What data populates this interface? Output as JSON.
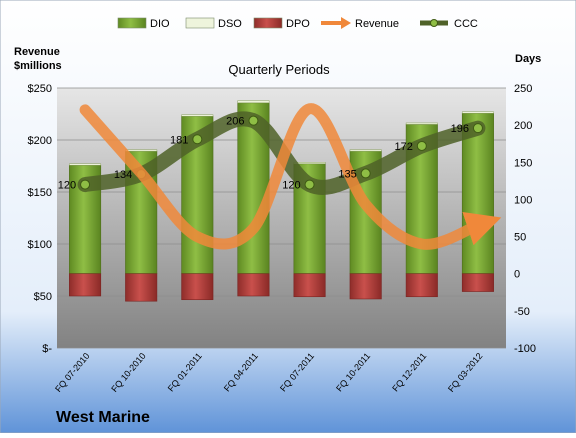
{
  "chart_data": {
    "type": "bar",
    "title": "Quarterly Periods",
    "company": "West Marine",
    "y_left_label_line1": "Revenue",
    "y_left_label_line2": "$millions",
    "y_right_label": "Days",
    "categories": [
      "FQ 07-2010",
      "FQ 10-2010",
      "FQ 01-2011",
      "FQ 04-2011",
      "FQ 07-2011",
      "FQ 10-2011",
      "FQ 12-2011",
      "FQ 03-2012"
    ],
    "legend": [
      "DIO",
      "DSO",
      "DPO",
      "Revenue",
      "CCC"
    ],
    "legend_placement": "top",
    "y_left": {
      "min": 0,
      "max": 250,
      "ticks": [
        0,
        50,
        100,
        150,
        200,
        250
      ],
      "tick_labels": [
        "$-",
        "$50",
        "$100",
        "$150",
        "$200",
        "$250"
      ]
    },
    "y_right": {
      "min": -100,
      "max": 250,
      "ticks": [
        -100,
        -50,
        0,
        50,
        100,
        150,
        200,
        250
      ],
      "tick_labels": [
        "-100",
        "-50",
        "0",
        "50",
        "100",
        "150",
        "200",
        "250"
      ]
    },
    "series": [
      {
        "name": "DIO",
        "axis": "right",
        "values": [
          146,
          165,
          212,
          230,
          148,
          165,
          201,
          216
        ],
        "color": "#77a82f"
      },
      {
        "name": "DSO",
        "axis": "right",
        "values": [
          2,
          2,
          2,
          3,
          2,
          2,
          2,
          2
        ],
        "color": "#eef4dc"
      },
      {
        "name": "DPO",
        "axis": "right",
        "values": [
          -30,
          -37,
          -35,
          -30,
          -31,
          -34,
          -31,
          -24
        ],
        "color": "#c0504d"
      },
      {
        "name": "Revenue",
        "axis": "left",
        "values": [
          229,
          168,
          107,
          115,
          230,
          138,
          100,
          118
        ],
        "color": "#f0883a"
      },
      {
        "name": "CCC",
        "axis": "right",
        "values": [
          120,
          134,
          181,
          206,
          120,
          135,
          172,
          196
        ],
        "color": "#4f6228"
      }
    ],
    "ccc_labels": [
      "120",
      "134",
      "181",
      "206",
      "120",
      "135",
      "172",
      "196"
    ],
    "grid": true
  }
}
